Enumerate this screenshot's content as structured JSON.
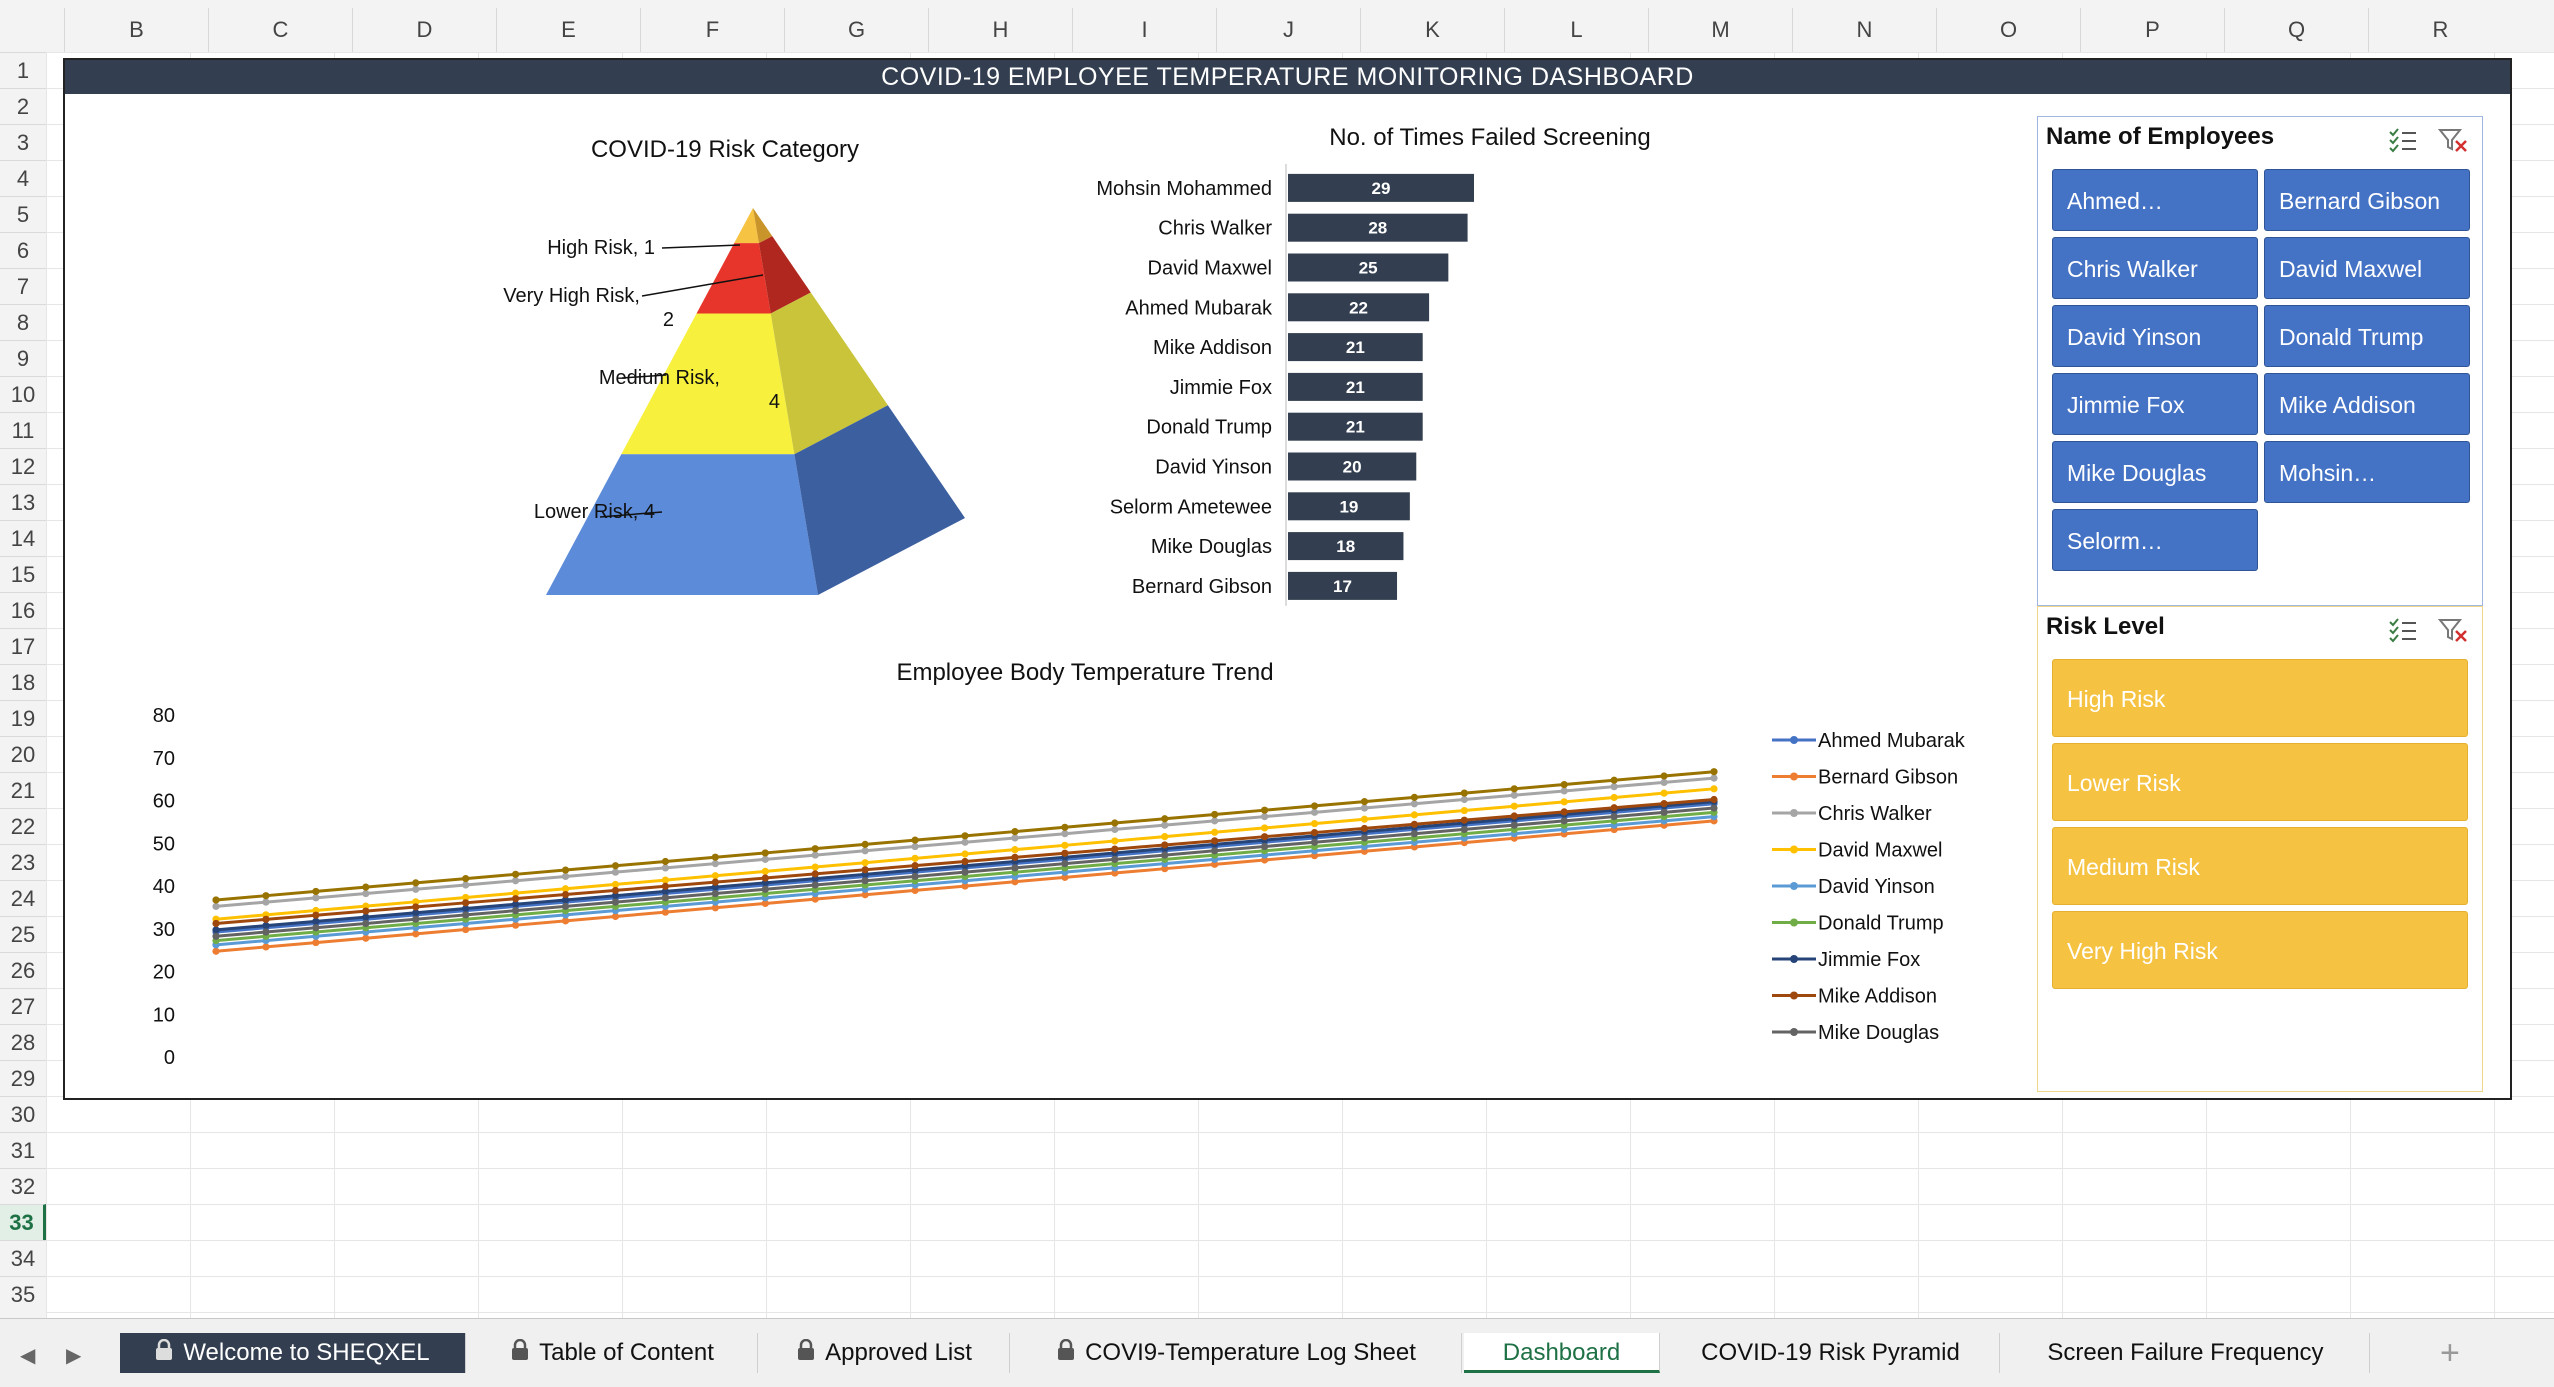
{
  "columns": [
    "B",
    "C",
    "D",
    "E",
    "F",
    "G",
    "H",
    "I",
    "J",
    "K",
    "L",
    "M",
    "N",
    "O",
    "P",
    "Q",
    "R"
  ],
  "rows": [
    "1",
    "2",
    "3",
    "4",
    "5",
    "6",
    "7",
    "8",
    "9",
    "10",
    "11",
    "12",
    "13",
    "14",
    "15",
    "16",
    "17",
    "18",
    "19",
    "20",
    "21",
    "22",
    "23",
    "24",
    "25",
    "26",
    "27",
    "28",
    "29",
    "30",
    "31",
    "32",
    "33",
    "34",
    "35"
  ],
  "active_row": "33",
  "dashboard": {
    "title": "COVID-19 EMPLOYEE TEMPERATURE MONITORING DASHBOARD"
  },
  "colors": {
    "header_navy": "#333f50",
    "bar_navy": "#333f50",
    "slicer_blue": "#4472c4",
    "slicer_yellow": "#f5c242",
    "active_green": "#1e7145"
  },
  "chart_data": [
    {
      "type": "pyramid",
      "title": "COVID-19 Risk Category",
      "categories": [
        "High Risk",
        "Very High Risk",
        "Medium Risk",
        "Lower Risk"
      ],
      "values": [
        1,
        2,
        4,
        4
      ],
      "labels": [
        {
          "lines": [
            "High Risk, 1"
          ]
        },
        {
          "lines": [
            "Very High Risk,",
            "2"
          ]
        },
        {
          "lines": [
            "Medium Risk,",
            "4"
          ]
        },
        {
          "lines": [
            "Lower Risk, 4"
          ]
        }
      ],
      "colors": [
        "#f6c343",
        "#e8352b",
        "#f7f03c",
        "#5b8bd9"
      ]
    },
    {
      "type": "bar",
      "orientation": "horizontal",
      "title": "No. of Times Failed Screening",
      "categories": [
        "Mohsin Mohammed",
        "Chris Walker",
        "David Maxwel",
        "Ahmed Mubarak",
        "Mike Addison",
        "Jimmie Fox",
        "Donald Trump",
        "David Yinson",
        "Selorm Ametewee",
        "Mike Douglas",
        "Bernard Gibson"
      ],
      "values": [
        29,
        28,
        25,
        22,
        21,
        21,
        21,
        20,
        19,
        18,
        17
      ],
      "xlim": [
        0,
        30
      ],
      "data_labels": true
    },
    {
      "type": "line",
      "title": "Employee Body Temperature Trend",
      "ylim": [
        0,
        80
      ],
      "yticks": [
        "0",
        "10",
        "20",
        "30",
        "40",
        "50",
        "60",
        "70",
        "80"
      ],
      "legend_position": "right",
      "point_count": 31,
      "series": [
        {
          "name": "Ahmed Mubarak",
          "color": "#4472c4",
          "start": 29,
          "end": 59
        },
        {
          "name": "Bernard Gibson",
          "color": "#ed7d31",
          "start": 24.5,
          "end": 55
        },
        {
          "name": "Chris Walker",
          "color": "#a5a5a5",
          "start": 35,
          "end": 65
        },
        {
          "name": "David Maxwel",
          "color": "#ffc000",
          "start": 32,
          "end": 62.5
        },
        {
          "name": "David Yinson",
          "color": "#5b9bd5",
          "start": 26,
          "end": 56
        },
        {
          "name": "Donald Trump",
          "color": "#70ad47",
          "start": 27,
          "end": 57
        },
        {
          "name": "Jimmie Fox",
          "color": "#264478",
          "start": 29.5,
          "end": 59.5
        },
        {
          "name": "Mike Addison",
          "color": "#9e480e",
          "start": 31,
          "end": 60
        },
        {
          "name": "Mike Douglas",
          "color": "#636363",
          "start": 28,
          "end": 58
        },
        {
          "color": "#997300",
          "start": 36.5,
          "end": 66.5
        }
      ]
    }
  ],
  "slicers": {
    "employees": {
      "title": "Name of Employees",
      "items": [
        "Ahmed…",
        "Bernard Gibson",
        "Chris Walker",
        "David Maxwel",
        "David Yinson",
        "Donald Trump",
        "Jimmie Fox",
        "Mike Addison",
        "Mike Douglas",
        "Mohsin…",
        "Selorm…"
      ]
    },
    "risk": {
      "title": "Risk Level",
      "items": [
        "High Risk",
        "Lower Risk",
        "Medium Risk",
        "Very High Risk"
      ]
    }
  },
  "tabs": [
    {
      "label": "Welcome to SHEQXEL",
      "locked": true,
      "style": "dark"
    },
    {
      "label": "Table of Content",
      "locked": true
    },
    {
      "label": "Approved List",
      "locked": true
    },
    {
      "label": "COVI9-Temperature Log Sheet",
      "locked": true
    },
    {
      "label": "Dashboard",
      "locked": false,
      "style": "active"
    },
    {
      "label": "COVID-19 Risk Pyramid",
      "locked": false
    },
    {
      "label": "Screen Failure Frequency",
      "locked": false
    }
  ],
  "icons": {
    "prev": "triangle-left-icon",
    "next": "triangle-right-icon",
    "add_sheet": "plus-icon",
    "multi_select": "multi-select-icon",
    "clear_filter": "clear-filter-icon",
    "lock": "lock-icon"
  }
}
